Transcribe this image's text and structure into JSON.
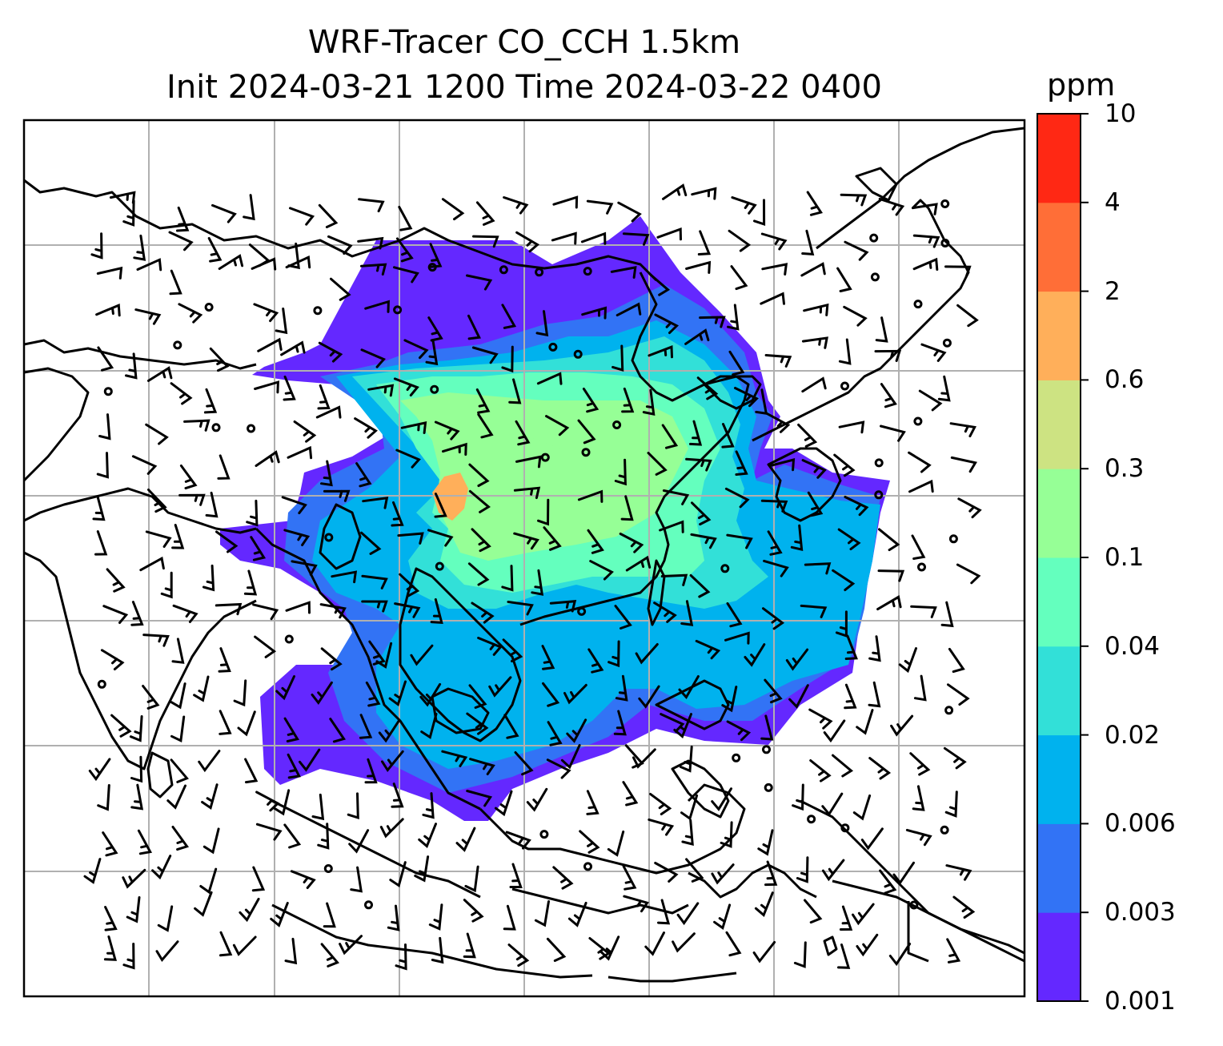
{
  "title": {
    "line1": "WRF-Tracer CO_CCH 1.5km",
    "line2": "Init 2024-03-21 1200 Time 2024-03-22 0400"
  },
  "colorbar": {
    "unit": "ppm",
    "levels": [
      "0.001",
      "0.003",
      "0.006",
      "0.02",
      "0.04",
      "0.1",
      "0.3",
      "0.6",
      "2",
      "4",
      "10"
    ],
    "colors": [
      "#6428ff",
      "#3273f5",
      "#00b2ee",
      "#32e0d8",
      "#64ffbe",
      "#96ff96",
      "#cde382",
      "#ffaf5a",
      "#ff6e37",
      "#ff2814"
    ]
  },
  "map": {
    "grid": "on",
    "coastline_color": "#000000",
    "grid_color": "#b0b0b0",
    "plume_colors": {
      "outer": "#6428ff",
      "mid": "#3273f5",
      "inner": "#00b2ee",
      "core1": "#32e0d8",
      "core2": "#64ffbe",
      "core3": "#96ff96",
      "peak": "#ffaf5a"
    }
  }
}
